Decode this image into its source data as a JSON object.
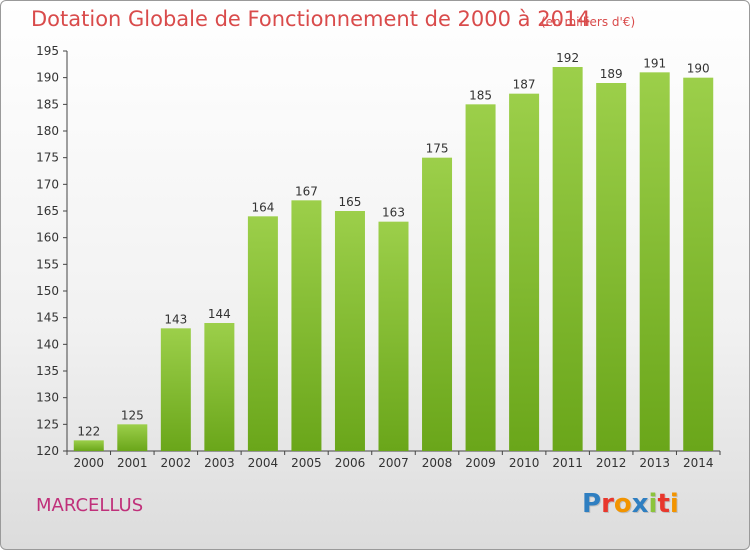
{
  "header": {
    "title": "Dotation Globale de Fonctionnement de 2000 à 2014",
    "unit_note": "(en milliers d'€)"
  },
  "footer": {
    "commune": "MARCELLUS",
    "logo_text": "Proxiti",
    "logo_colors": [
      "#2f7fc1",
      "#e8372c",
      "#f29400",
      "#2f7fc1",
      "#8cc43c",
      "#e8372c",
      "#f29400"
    ]
  },
  "chart_data": {
    "type": "bar",
    "categories": [
      "2000",
      "2001",
      "2002",
      "2003",
      "2004",
      "2005",
      "2006",
      "2007",
      "2008",
      "2009",
      "2010",
      "2011",
      "2012",
      "2013",
      "2014"
    ],
    "values": [
      122,
      125,
      143,
      144,
      164,
      167,
      165,
      163,
      175,
      185,
      187,
      192,
      189,
      191,
      190
    ],
    "ylim": [
      120,
      195
    ],
    "yticks": [
      120,
      125,
      130,
      135,
      140,
      145,
      150,
      155,
      160,
      165,
      170,
      175,
      180,
      185,
      190,
      195
    ],
    "grid": false,
    "data_labels": true,
    "bar_color_top": "#9ccf4a",
    "bar_color_bottom": "#6aa61a"
  }
}
